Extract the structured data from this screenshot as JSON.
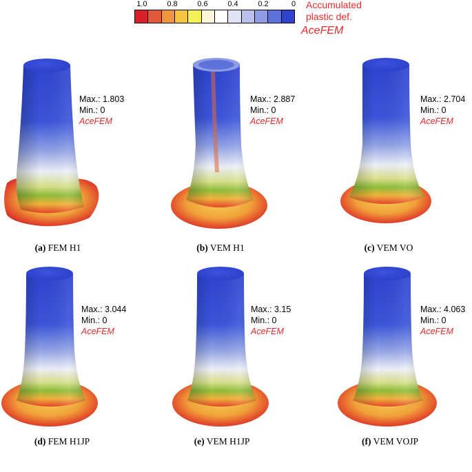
{
  "legend": {
    "ticks": [
      "1.0",
      "0.8",
      "0.6",
      "0.4",
      "0.2",
      "0"
    ],
    "colors": [
      "#d7202a",
      "#e3593a",
      "#f0953f",
      "#f7c343",
      "#f5ef58",
      "#fdf6d8",
      "#ffffff",
      "#dfe3f5",
      "#bbc3ec",
      "#8e9ce3",
      "#5f72db",
      "#2f43cf"
    ],
    "title_line1": "Accumulated",
    "title_line2": "plastic def.",
    "brand": "AceFEM"
  },
  "panels": [
    {
      "tag": "(a)",
      "name": "FEM H1",
      "max": "Max.: 1.803",
      "min": "Min.: 0",
      "brand": "AceFEM"
    },
    {
      "tag": "(b)",
      "name": "VEM H1",
      "max": "Max.: 2.887",
      "min": "Min.: 0",
      "brand": "AceFEM"
    },
    {
      "tag": "(c)",
      "name": "VEM VO",
      "max": "Max.: 2.704",
      "min": "Min.: 0",
      "brand": "AceFEM"
    },
    {
      "tag": "(d)",
      "name": "FEM H1JP",
      "max": "Max.: 3.044",
      "min": "Min.: 0",
      "brand": "AceFEM"
    },
    {
      "tag": "(e)",
      "name": "VEM H1JP",
      "max": "Max.: 3.15",
      "min": "Min.: 0",
      "brand": "AceFEM"
    },
    {
      "tag": "(f)",
      "name": "VEM VOJP",
      "max": "Max.: 4.063",
      "min": "Min.: 0",
      "brand": "AceFEM"
    }
  ]
}
